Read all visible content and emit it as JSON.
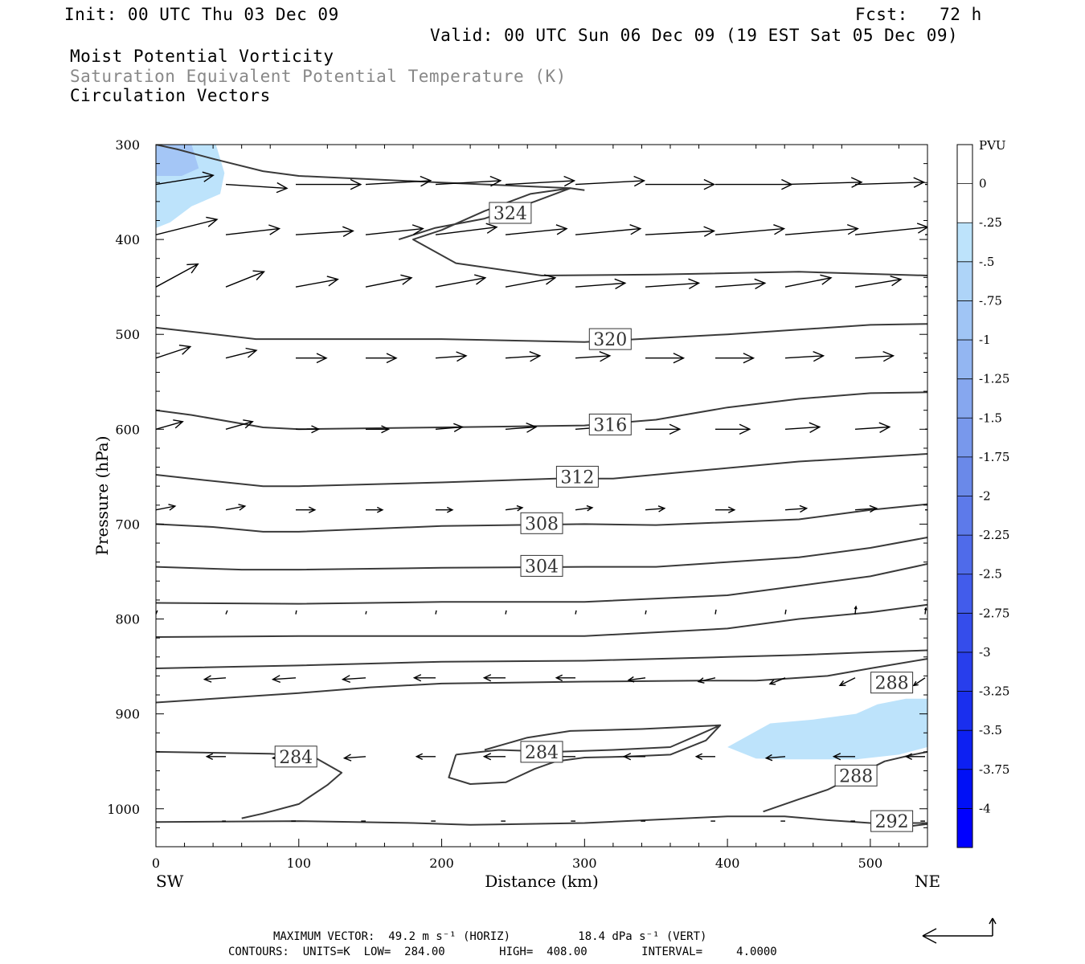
{
  "header": {
    "init": "Init: 00 UTC Thu 03 Dec 09",
    "fcst": "Fcst:   72 h",
    "valid": "Valid: 00 UTC Sun 06 Dec 09 (19 EST Sat 05 Dec 09)",
    "field1": "Moist Potential Vorticity",
    "field2": "Saturation Equivalent Potential Temperature (K)",
    "field3": "Circulation Vectors"
  },
  "colors": {
    "contour": "#3a3a3a",
    "pv_shade_light": "#bde3fb",
    "pv_shade_mid": "#a4c6f6"
  },
  "chart_data": {
    "type": "contour",
    "xlabel": "Distance (km)",
    "ylabel": "Pressure (hPa)",
    "x_ticks": [
      0,
      100,
      200,
      300,
      400,
      500
    ],
    "x_left_label": "SW",
    "x_right_label": "NE",
    "xlim": [
      0,
      540
    ],
    "y_ticks": [
      300,
      400,
      500,
      600,
      700,
      800,
      900,
      1000
    ],
    "ylim": [
      1040,
      300
    ],
    "contour_labels": [
      {
        "text": "324",
        "x": 248,
        "p": 372
      },
      {
        "text": "320",
        "x": 318,
        "p": 505
      },
      {
        "text": "316",
        "x": 318,
        "p": 595
      },
      {
        "text": "312",
        "x": 295,
        "p": 650
      },
      {
        "text": "308",
        "x": 270,
        "p": 699
      },
      {
        "text": "304",
        "x": 270,
        "p": 744
      },
      {
        "text": "288",
        "x": 515,
        "p": 867
      },
      {
        "text": "284",
        "x": 98,
        "p": 945
      },
      {
        "text": "284",
        "x": 270,
        "p": 940
      },
      {
        "text": "288",
        "x": 490,
        "p": 965
      },
      {
        "text": "292",
        "x": 515,
        "p": 1013
      }
    ],
    "contours": [
      [
        [
          0,
          300
        ],
        [
          15,
          305
        ],
        [
          40,
          315
        ],
        [
          75,
          328
        ],
        [
          100,
          333
        ],
        [
          200,
          340
        ],
        [
          290,
          346
        ],
        [
          300,
          348
        ]
      ],
      [
        [
          0,
          580
        ],
        [
          25,
          585
        ],
        [
          75,
          598
        ],
        [
          100,
          600
        ],
        [
          200,
          598
        ],
        [
          300,
          596
        ],
        [
          350,
          590
        ],
        [
          400,
          577
        ],
        [
          450,
          568
        ],
        [
          500,
          562
        ],
        [
          540,
          561
        ]
      ],
      [
        [
          0,
          493
        ],
        [
          30,
          498
        ],
        [
          70,
          505
        ],
        [
          100,
          505
        ],
        [
          200,
          505
        ],
        [
          300,
          508
        ],
        [
          400,
          500
        ],
        [
          450,
          495
        ],
        [
          500,
          490
        ],
        [
          540,
          489
        ]
      ],
      [
        [
          0,
          648
        ],
        [
          30,
          653
        ],
        [
          75,
          660
        ],
        [
          100,
          660
        ],
        [
          200,
          656
        ],
        [
          280,
          652
        ],
        [
          320,
          652
        ],
        [
          370,
          645
        ],
        [
          450,
          634
        ],
        [
          540,
          626
        ]
      ],
      [
        [
          0,
          700
        ],
        [
          40,
          703
        ],
        [
          75,
          708
        ],
        [
          100,
          708
        ],
        [
          200,
          702
        ],
        [
          300,
          700
        ],
        [
          350,
          701
        ],
        [
          450,
          695
        ],
        [
          500,
          685
        ],
        [
          540,
          679
        ]
      ],
      [
        [
          0,
          745
        ],
        [
          60,
          748
        ],
        [
          100,
          748
        ],
        [
          200,
          746
        ],
        [
          300,
          745
        ],
        [
          350,
          745
        ],
        [
          450,
          735
        ],
        [
          500,
          725
        ],
        [
          540,
          714
        ]
      ],
      [
        [
          0,
          783
        ],
        [
          100,
          784
        ],
        [
          200,
          782
        ],
        [
          300,
          782
        ],
        [
          400,
          775
        ],
        [
          450,
          765
        ],
        [
          500,
          755
        ],
        [
          540,
          742
        ]
      ],
      [
        [
          0,
          819
        ],
        [
          100,
          818
        ],
        [
          200,
          818
        ],
        [
          300,
          818
        ],
        [
          400,
          810
        ],
        [
          450,
          800
        ],
        [
          500,
          793
        ],
        [
          540,
          785
        ]
      ],
      [
        [
          0,
          852
        ],
        [
          100,
          849
        ],
        [
          200,
          845
        ],
        [
          300,
          844
        ],
        [
          400,
          840
        ],
        [
          450,
          838
        ],
        [
          500,
          835
        ],
        [
          540,
          833
        ]
      ],
      [
        [
          0,
          888
        ],
        [
          100,
          878
        ],
        [
          150,
          872
        ],
        [
          200,
          868
        ],
        [
          300,
          866
        ],
        [
          380,
          865
        ],
        [
          420,
          865
        ],
        [
          470,
          860
        ],
        [
          500,
          852
        ],
        [
          540,
          842
        ]
      ],
      [
        [
          0,
          1014
        ],
        [
          100,
          1013
        ],
        [
          180,
          1015
        ],
        [
          220,
          1017
        ],
        [
          300,
          1015
        ],
        [
          400,
          1008
        ],
        [
          440,
          1008
        ],
        [
          470,
          1012
        ],
        [
          500,
          1015
        ],
        [
          540,
          1015
        ]
      ],
      [
        [
          0,
          940
        ],
        [
          80,
          942
        ],
        [
          110,
          945
        ],
        [
          130,
          962
        ],
        [
          120,
          975
        ],
        [
          100,
          995
        ],
        [
          75,
          1005
        ],
        [
          60,
          1010
        ]
      ],
      [
        [
          210,
          943
        ],
        [
          240,
          938
        ],
        [
          280,
          940
        ],
        [
          320,
          938
        ],
        [
          360,
          935
        ],
        [
          380,
          922
        ],
        [
          395,
          912
        ],
        [
          340,
          916
        ],
        [
          290,
          918
        ],
        [
          260,
          925
        ],
        [
          230,
          938
        ]
      ],
      [
        [
          210,
          943
        ],
        [
          205,
          967
        ],
        [
          220,
          974
        ],
        [
          245,
          972
        ],
        [
          265,
          958
        ],
        [
          280,
          950
        ],
        [
          300,
          946
        ],
        [
          330,
          945
        ],
        [
          360,
          943
        ],
        [
          385,
          928
        ],
        [
          395,
          912
        ]
      ],
      [
        [
          170,
          400
        ],
        [
          195,
          388
        ],
        [
          230,
          378
        ],
        [
          265,
          360
        ],
        [
          290,
          346
        ],
        [
          262,
          352
        ],
        [
          230,
          370
        ],
        [
          200,
          390
        ],
        [
          180,
          400
        ],
        [
          210,
          425
        ],
        [
          270,
          438
        ],
        [
          350,
          437
        ],
        [
          450,
          434
        ],
        [
          540,
          438
        ]
      ],
      [
        [
          425,
          1003
        ],
        [
          450,
          990
        ],
        [
          470,
          980
        ],
        [
          490,
          965
        ],
        [
          510,
          950
        ],
        [
          530,
          943
        ],
        [
          540,
          940
        ]
      ],
      [
        [
          510,
          1022
        ],
        [
          530,
          1018
        ],
        [
          540,
          1016
        ]
      ]
    ],
    "pv_shading": [
      {
        "level": -0.5,
        "polygon": [
          [
            0,
            300
          ],
          [
            42,
            300
          ],
          [
            48,
            330
          ],
          [
            45,
            352
          ],
          [
            25,
            365
          ],
          [
            10,
            382
          ],
          [
            0,
            388
          ]
        ]
      },
      {
        "level": -0.75,
        "polygon": [
          [
            0,
            300
          ],
          [
            25,
            300
          ],
          [
            30,
            325
          ],
          [
            18,
            333
          ],
          [
            0,
            333
          ]
        ]
      },
      {
        "level": -0.5,
        "polygon": [
          [
            400,
            935
          ],
          [
            430,
            910
          ],
          [
            460,
            906
          ],
          [
            490,
            900
          ],
          [
            505,
            890
          ],
          [
            525,
            884
          ],
          [
            540,
            884
          ],
          [
            540,
            935
          ],
          [
            520,
            943
          ],
          [
            490,
            948
          ],
          [
            440,
            948
          ],
          [
            420,
            947
          ]
        ]
      }
    ],
    "vectors": [
      {
        "p": 342,
        "u": [
          0.75,
          0.8,
          0.85,
          0.85,
          0.85,
          0.9,
          0.9,
          0.9,
          1,
          1,
          0.9,
          0.9,
          0.95
        ],
        "v": [
          0.12,
          -0.05,
          0,
          0.05,
          0.05,
          0.05,
          0.05,
          0,
          0,
          0.03,
          0.03,
          0,
          0
        ]
      },
      {
        "p": 395,
        "u": [
          0.8,
          0.7,
          0.75,
          0.75,
          0.8,
          0.8,
          0.85,
          0.9,
          0.9,
          0.95,
          0.95,
          0.9,
          0.9
        ],
        "v": [
          0.2,
          0.08,
          0.05,
          0.08,
          0.1,
          0.08,
          0.08,
          0.05,
          0.08,
          0.08,
          0.1,
          0.08,
          0.1
        ]
      },
      {
        "p": 450,
        "u": [
          0.55,
          0.5,
          0.55,
          0.6,
          0.65,
          0.65,
          0.65,
          0.7,
          0.65,
          0.6,
          0.6,
          0.65,
          0.7
        ],
        "v": [
          0.3,
          0.2,
          0.1,
          0.12,
          0.12,
          0.12,
          0.05,
          0.05,
          0.05,
          0.12,
          0.1,
          0.1,
          0.15
        ]
      },
      {
        "p": 525,
        "u": [
          0.45,
          0.4,
          0.4,
          0.4,
          0.4,
          0.45,
          0.45,
          0.5,
          0.5,
          0.5,
          0.5,
          0.5,
          0.5
        ],
        "v": [
          0.15,
          0.1,
          0,
          0,
          0.03,
          0.03,
          0.03,
          0,
          0,
          0.03,
          0.03,
          0.03,
          0.08
        ]
      },
      {
        "p": 600,
        "u": [
          0.35,
          0.35,
          0.3,
          0.3,
          0.35,
          0.4,
          0.4,
          0.45,
          0.45,
          0.45,
          0.45,
          0.45,
          0.45
        ],
        "v": [
          0.1,
          0.1,
          0,
          0,
          0.03,
          0.03,
          0.03,
          0,
          0,
          0.03,
          0.03,
          0.02,
          0.05
        ]
      },
      {
        "p": 685,
        "u": [
          0.25,
          0.25,
          0.25,
          0.22,
          0.22,
          0.22,
          0.22,
          0.25,
          0.25,
          0.28,
          0.28,
          0.28,
          0.3
        ],
        "v": [
          0.05,
          0.05,
          0,
          0,
          0,
          0.03,
          0.03,
          0.02,
          0,
          0.02,
          0.02,
          0,
          0
        ]
      },
      {
        "p": 795,
        "u": [
          0.02,
          0.02,
          0.01,
          0.01,
          0.01,
          0.01,
          0.01,
          0.01,
          0.01,
          0.01,
          0.01,
          0.01,
          0.01
        ],
        "v": [
          0.05,
          0.05,
          0.05,
          0.04,
          0.05,
          0.05,
          0.05,
          0.05,
          0.06,
          0.06,
          0.1,
          0.08,
          0.12
        ]
      },
      {
        "p": 862,
        "u": [
          -0.3,
          -0.28,
          -0.3,
          -0.3,
          -0.28,
          -0.28,
          -0.25,
          -0.22,
          -0.22,
          -0.2,
          -0.2,
          -0.15,
          -0.1
        ],
        "v": [
          0,
          -0.02,
          -0.02,
          -0.02,
          0,
          0,
          0,
          -0.03,
          -0.05,
          -0.08,
          -0.1,
          -0.1,
          -0.1
        ]
      },
      {
        "p": 945,
        "u": [
          -0.28,
          -0.25,
          -0.3,
          -0.28,
          -0.25,
          -0.28,
          -0.3,
          -0.28,
          -0.25,
          -0.25,
          -0.28,
          -0.25,
          -0.2
        ],
        "v": [
          0,
          0,
          -0.02,
          -0.02,
          0,
          0,
          0,
          0,
          0,
          -0.02,
          0,
          0,
          0
        ]
      },
      {
        "p": 1013,
        "u": [
          -0.05,
          -0.05,
          -0.06,
          -0.06,
          -0.06,
          -0.06,
          -0.06,
          -0.06,
          -0.06,
          -0.06,
          -0.06,
          -0.06,
          -0.06
        ],
        "v": [
          0,
          0,
          0,
          0,
          0,
          0,
          0,
          0,
          0,
          0,
          0,
          0,
          0
        ]
      }
    ],
    "colorbar": {
      "title": "PVU",
      "labels": [
        "0",
        "-.25",
        "-.5",
        "-.75",
        "-1",
        "-1.25",
        "-1.5",
        "-1.75",
        "-2",
        "-2.25",
        "-2.5",
        "-2.75",
        "-3",
        "-3.25",
        "-3.5",
        "-3.75",
        "-4"
      ],
      "colors": [
        "#ffffff",
        "#ffffff",
        "#bde3fb",
        "#aed4f8",
        "#a0c5f5",
        "#93b6f2",
        "#86a7ef",
        "#7898ec",
        "#6a89e9",
        "#5d7aea",
        "#4f6bea",
        "#425ceb",
        "#354deb",
        "#283eec",
        "#1a2fee",
        "#0d20f2",
        "#0010f6",
        "#0000ff"
      ]
    }
  },
  "footer": {
    "max_vector_line": "MAXIMUM VECTOR:  49.2 m s⁻¹ (HORIZ)          18.4 dPa s⁻¹ (VERT)",
    "contours_line": "CONTOURS:  UNITS=K  LOW=  284.00        HIGH=  408.00        INTERVAL=     4.0000"
  }
}
